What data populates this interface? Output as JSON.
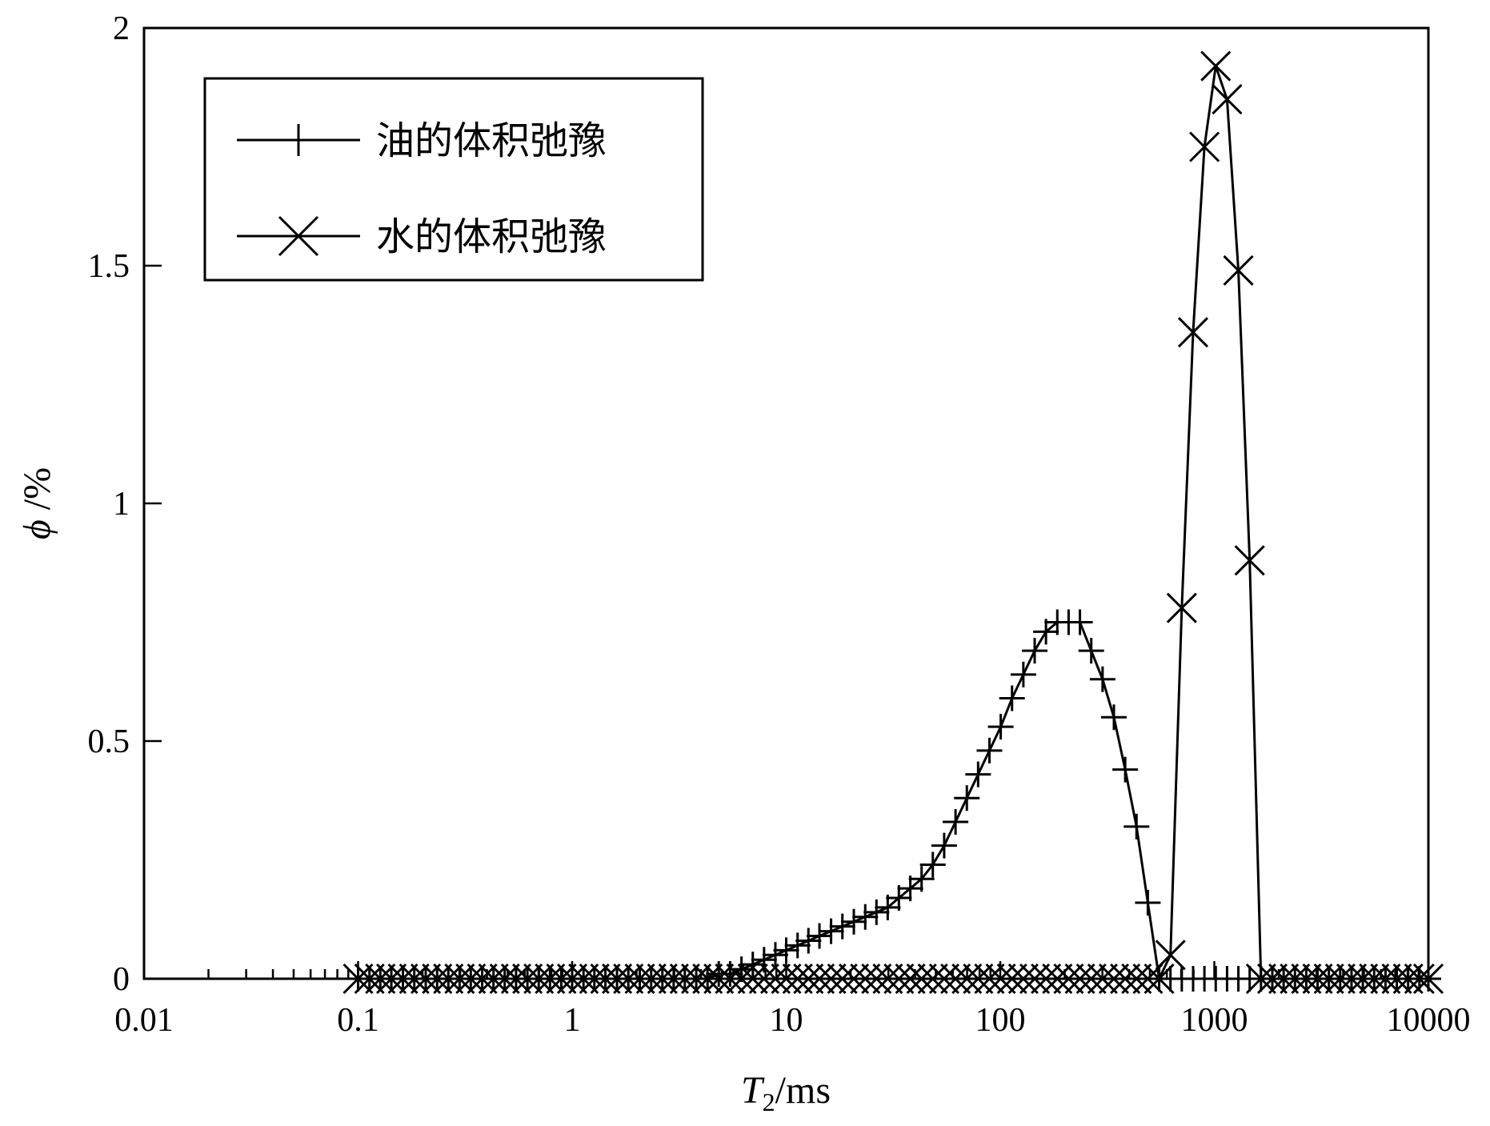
{
  "chart_data": {
    "type": "line",
    "xscale": "log",
    "xlim": [
      0.01,
      10000
    ],
    "ylim": [
      0,
      2
    ],
    "xlabel": {
      "main": "T",
      "sub": "2",
      "unit": "/ms"
    },
    "ylabel": {
      "symbol": "ϕ",
      "unit": " /%"
    },
    "x_ticks": [
      "0.01",
      "0.1",
      "1",
      "10",
      "100",
      "1000",
      "10000"
    ],
    "y_ticks": [
      "0",
      "0.5",
      "1",
      "1.5",
      "2"
    ],
    "legend_position": "top-left",
    "series": [
      {
        "name": "油的体积弛豫",
        "marker": "plus",
        "color": "#000000",
        "x": [
          0.1,
          0.113,
          0.127,
          0.143,
          0.162,
          0.183,
          0.207,
          0.234,
          0.264,
          0.298,
          0.336,
          0.38,
          0.429,
          0.484,
          0.547,
          0.618,
          0.698,
          0.788,
          0.89,
          1.0,
          1.13,
          1.27,
          1.43,
          1.62,
          1.83,
          2.07,
          2.34,
          2.64,
          2.98,
          3.36,
          3.8,
          4.29,
          4.84,
          5.47,
          6.18,
          6.98,
          7.88,
          8.9,
          10.0,
          11.3,
          12.7,
          14.3,
          16.2,
          18.3,
          20.7,
          23.4,
          26.4,
          29.8,
          33.6,
          38.0,
          42.9,
          48.4,
          54.7,
          61.8,
          69.8,
          78.8,
          89.0,
          100.5,
          113.5,
          128.2,
          144.8,
          163.5,
          184.7,
          208.6,
          235.6,
          266.1,
          300.6,
          339.5,
          383.4,
          433.0,
          489.1,
          552.4,
          623.9,
          704.7,
          795.9,
          898.9,
          1015.3,
          1146.7,
          1295.2,
          1462.8,
          1652.2,
          1866.1,
          2107.6,
          2380.4,
          2688.5,
          3036.6,
          3429.7,
          3873.6,
          4375.1,
          4941.4,
          5581.1,
          6303.5,
          7119.5,
          8041.1,
          9081.9,
          10000
        ],
        "y": [
          0,
          0,
          0,
          0,
          0,
          0,
          0,
          0,
          0,
          0,
          0,
          0,
          0,
          0,
          0,
          0,
          0,
          0,
          0,
          0,
          0,
          0,
          0,
          0,
          0,
          0,
          0,
          0,
          0,
          0,
          0,
          0,
          0.01,
          0.01,
          0.02,
          0.03,
          0.04,
          0.05,
          0.06,
          0.07,
          0.08,
          0.09,
          0.1,
          0.11,
          0.12,
          0.13,
          0.14,
          0.15,
          0.17,
          0.19,
          0.21,
          0.24,
          0.28,
          0.33,
          0.38,
          0.43,
          0.48,
          0.53,
          0.59,
          0.64,
          0.69,
          0.73,
          0.75,
          0.75,
          0.75,
          0.69,
          0.63,
          0.55,
          0.44,
          0.32,
          0.16,
          0,
          0,
          0,
          0,
          0,
          0,
          0,
          0,
          0,
          0,
          0,
          0,
          0,
          0,
          0,
          0,
          0,
          0,
          0,
          0,
          0,
          0,
          0,
          0,
          0
        ]
      },
      {
        "name": "水的体积弛豫",
        "marker": "x",
        "color": "#000000",
        "x": [
          0.1,
          0.113,
          0.127,
          0.143,
          0.162,
          0.183,
          0.207,
          0.234,
          0.264,
          0.298,
          0.336,
          0.38,
          0.429,
          0.484,
          0.547,
          0.618,
          0.698,
          0.788,
          0.89,
          1.0,
          1.13,
          1.27,
          1.43,
          1.62,
          1.83,
          2.07,
          2.34,
          2.64,
          2.98,
          3.36,
          3.8,
          4.29,
          4.84,
          5.47,
          6.18,
          6.98,
          7.88,
          8.9,
          10.0,
          11.3,
          12.7,
          14.3,
          16.2,
          18.3,
          20.7,
          23.4,
          26.4,
          29.8,
          33.6,
          38.0,
          42.9,
          48.4,
          54.7,
          61.8,
          69.8,
          78.8,
          89.0,
          100.5,
          113.5,
          128.2,
          144.8,
          163.5,
          184.7,
          208.6,
          235.6,
          266.1,
          300.6,
          339.5,
          383.4,
          433.0,
          489.1,
          552.4,
          623.9,
          704.7,
          795.9,
          898.9,
          1015.3,
          1146.7,
          1295.2,
          1462.8,
          1652.2,
          1866.1,
          2107.6,
          2380.4,
          2688.5,
          3036.6,
          3429.7,
          3873.6,
          4375.1,
          4941.4,
          5581.1,
          6303.5,
          7119.5,
          8041.1,
          9081.9,
          10000
        ],
        "y": [
          0,
          0,
          0,
          0,
          0,
          0,
          0,
          0,
          0,
          0,
          0,
          0,
          0,
          0,
          0,
          0,
          0,
          0,
          0,
          0,
          0,
          0,
          0,
          0,
          0,
          0,
          0,
          0,
          0,
          0,
          0,
          0,
          0,
          0,
          0,
          0,
          0,
          0,
          0,
          0,
          0,
          0,
          0,
          0,
          0,
          0,
          0,
          0,
          0,
          0,
          0,
          0,
          0,
          0,
          0,
          0,
          0,
          0,
          0,
          0,
          0,
          0,
          0,
          0,
          0,
          0,
          0,
          0,
          0,
          0,
          0,
          0,
          0.05,
          0.78,
          1.36,
          1.75,
          1.92,
          1.85,
          1.49,
          0.88,
          0,
          0,
          0,
          0,
          0,
          0,
          0,
          0,
          0,
          0,
          0,
          0,
          0,
          0,
          0,
          0
        ]
      }
    ]
  }
}
